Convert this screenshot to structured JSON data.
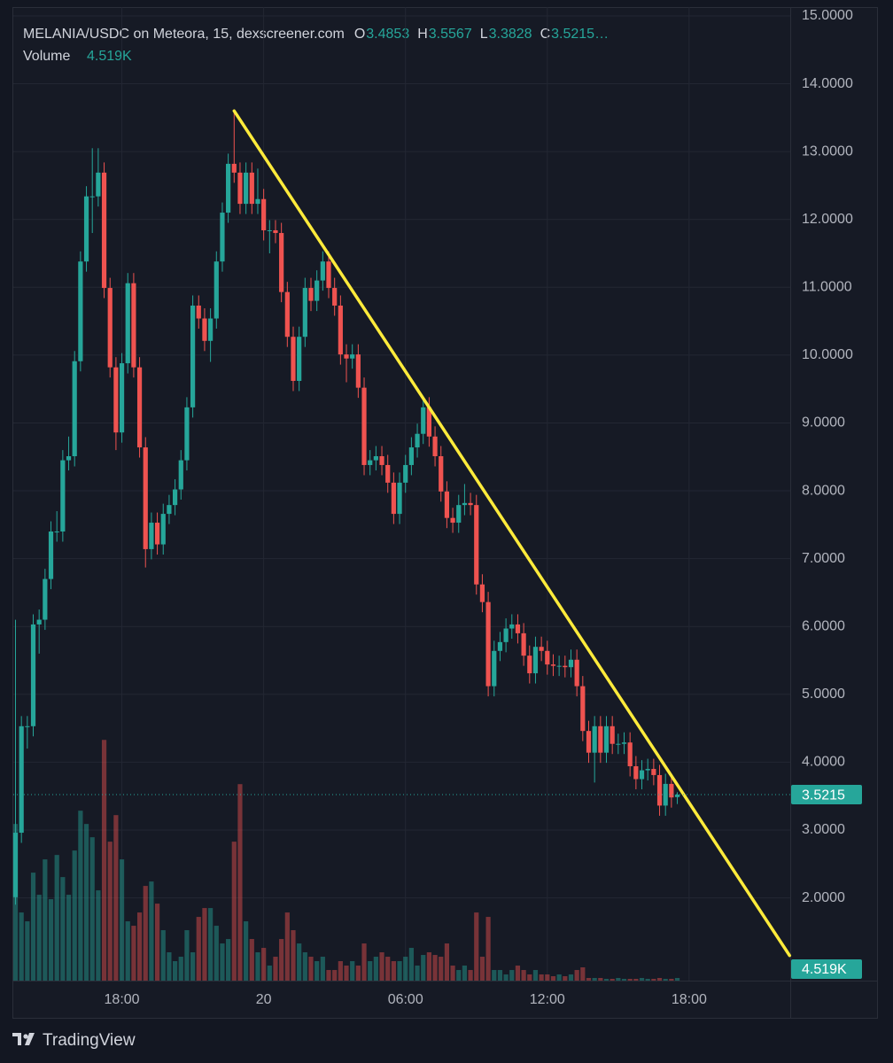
{
  "header": {
    "title": "MELANIA/USDC on Meteora, 15, dexscreener.com",
    "ohlc": [
      {
        "key": "O",
        "text": "3.4853"
      },
      {
        "key": "H",
        "text": "3.5567"
      },
      {
        "key": "L",
        "text": "3.3828"
      },
      {
        "key": "C",
        "text": "3.5215…"
      }
    ],
    "volume_label": "Volume"
  },
  "brand": "TradingView",
  "chart_data": {
    "type": "candlestick",
    "up_color": "#26a69a",
    "down_color": "#ef5350",
    "grid": true,
    "categories": [
      null,
      null,
      null,
      null,
      null,
      null,
      null,
      null,
      null,
      null,
      null,
      null,
      null,
      null,
      null,
      null,
      null,
      null,
      "18:00",
      null,
      null,
      null,
      null,
      null,
      null,
      null,
      null,
      null,
      null,
      null,
      null,
      null,
      null,
      null,
      null,
      null,
      null,
      null,
      null,
      null,
      null,
      null,
      "20",
      null,
      null,
      null,
      null,
      null,
      null,
      null,
      null,
      null,
      null,
      null,
      null,
      null,
      null,
      null,
      null,
      null,
      null,
      null,
      null,
      null,
      null,
      null,
      "06:00",
      null,
      null,
      null,
      null,
      null,
      null,
      null,
      null,
      null,
      null,
      null,
      null,
      null,
      null,
      null,
      null,
      null,
      null,
      null,
      null,
      null,
      null,
      null,
      "12:00",
      null,
      null,
      null,
      null,
      null,
      null,
      null,
      null,
      null,
      null,
      null,
      null,
      null,
      null,
      null,
      null,
      null,
      null,
      null,
      null,
      null,
      null,
      null,
      "18:00",
      null,
      null,
      null,
      null,
      null,
      null,
      null,
      null,
      null,
      null,
      null,
      null,
      null,
      null,
      null,
      null,
      null
    ],
    "open": [
      2.01,
      2.96,
      4.53,
      4.53,
      6.03,
      6.1,
      6.7,
      7.4,
      7.4,
      8.45,
      8.51,
      9.91,
      11.38,
      12.34,
      12.34,
      12.69,
      10.99,
      9.82,
      8.86,
      9.88,
      11.06,
      9.82,
      8.64,
      7.14,
      7.53,
      7.21,
      7.66,
      7.79,
      8.02,
      8.45,
      9.23,
      10.73,
      10.54,
      10.21,
      10.54,
      11.38,
      12.1,
      12.82,
      12.69,
      12.23,
      12.69,
      12.23,
      12.3,
      11.84,
      11.84,
      11.8,
      10.93,
      10.27,
      9.62,
      10.27,
      10.99,
      10.8,
      11.1,
      11.38,
      10.99,
      10.73,
      10.01,
      9.95,
      10.01,
      9.52,
      8.38,
      8.45,
      8.51,
      8.38,
      8.12,
      7.66,
      8.12,
      8.38,
      8.64,
      8.84,
      9.23,
      8.8,
      8.51,
      7.99,
      7.6,
      7.53,
      7.79,
      7.82,
      7.79,
      6.62,
      6.36,
      5.12,
      5.64,
      5.77,
      5.97,
      6.03,
      5.9,
      5.57,
      5.31,
      5.7,
      5.64,
      5.44,
      5.42,
      5.42,
      5.4,
      5.51,
      5.12,
      4.46,
      4.14,
      4.53,
      4.14,
      4.53,
      4.27,
      4.27,
      4.29,
      3.94,
      3.75,
      3.88,
      3.9,
      3.81,
      3.36,
      3.68,
      3.4853,
      null,
      null,
      null,
      null,
      null,
      null,
      null,
      null,
      null,
      null,
      null,
      null,
      null,
      null,
      null,
      null,
      null,
      null,
      null
    ],
    "high": [
      6.1,
      4.68,
      4.68,
      6.18,
      6.25,
      6.85,
      7.55,
      7.7,
      8.6,
      8.8,
      10.06,
      11.53,
      12.49,
      13.05,
      13.05,
      12.84,
      11.14,
      9.97,
      10.03,
      11.21,
      11.21,
      9.97,
      8.79,
      7.68,
      7.68,
      7.81,
      7.94,
      8.17,
      8.6,
      9.38,
      10.88,
      10.88,
      10.69,
      10.69,
      11.53,
      12.25,
      12.97,
      13.6,
      12.84,
      12.84,
      12.84,
      12.75,
      12.45,
      11.99,
      11.99,
      11.95,
      11.08,
      10.42,
      10.42,
      11.14,
      11.14,
      11.25,
      11.53,
      11.53,
      11.14,
      10.88,
      10.16,
      10.16,
      10.16,
      9.67,
      8.6,
      8.66,
      8.66,
      8.53,
      8.27,
      8.27,
      8.53,
      8.79,
      8.99,
      9.38,
      9.38,
      8.95,
      8.66,
      8.14,
      7.75,
      7.94,
      8.1,
      7.97,
      7.94,
      6.77,
      6.51,
      5.79,
      5.92,
      6.12,
      6.18,
      6.18,
      6.05,
      5.72,
      5.85,
      5.85,
      5.79,
      5.59,
      5.57,
      5.57,
      5.66,
      5.66,
      5.27,
      4.61,
      4.68,
      4.68,
      4.68,
      4.68,
      4.42,
      4.44,
      4.44,
      4.09,
      4.03,
      4.05,
      4.05,
      3.96,
      3.83,
      3.83,
      3.5567,
      null,
      null,
      null,
      null,
      null,
      null,
      null,
      null,
      null,
      null,
      null,
      null,
      null,
      null,
      null,
      null,
      null,
      null,
      null
    ],
    "low": [
      1.9,
      2.81,
      4.2,
      4.38,
      5.6,
      5.95,
      6.55,
      7.25,
      7.25,
      8.3,
      8.36,
      9.76,
      11.23,
      11.8,
      12.19,
      10.84,
      9.67,
      8.6,
      8.71,
      9.73,
      9.67,
      8.49,
      6.87,
      6.99,
      7.06,
      7.06,
      7.51,
      7.64,
      7.87,
      8.3,
      9.08,
      10.39,
      10.06,
      9.9,
      10.39,
      11.23,
      11.95,
      12.54,
      12.08,
      12.08,
      12.08,
      12.08,
      11.69,
      11.5,
      11.65,
      10.78,
      10.12,
      9.47,
      9.47,
      10.12,
      10.65,
      10.65,
      10.95,
      10.84,
      10.58,
      9.86,
      9.6,
      9.8,
      9.37,
      8.23,
      8.23,
      8.3,
      8.23,
      7.97,
      7.51,
      7.51,
      7.97,
      8.23,
      8.49,
      8.69,
      8.65,
      8.36,
      7.84,
      7.45,
      7.38,
      7.38,
      7.64,
      7.64,
      6.47,
      6.21,
      4.97,
      4.97,
      5.49,
      5.62,
      5.82,
      5.75,
      5.42,
      5.16,
      5.16,
      5.49,
      5.29,
      5.27,
      5.27,
      5.25,
      5.25,
      4.97,
      4.31,
      3.99,
      3.7,
      3.99,
      3.99,
      4.12,
      4.12,
      4.12,
      3.79,
      3.6,
      3.6,
      3.73,
      3.66,
      3.21,
      3.21,
      3.33,
      3.3828,
      null,
      null,
      null,
      null,
      null,
      null,
      null,
      null,
      null,
      null,
      null,
      null,
      null,
      null,
      null,
      null,
      null,
      null,
      null
    ],
    "close": [
      2.96,
      4.53,
      4.53,
      6.03,
      6.1,
      6.7,
      7.4,
      7.4,
      8.45,
      8.51,
      9.91,
      11.38,
      12.34,
      12.34,
      12.69,
      10.99,
      9.82,
      8.86,
      9.88,
      11.06,
      9.82,
      8.64,
      7.14,
      7.53,
      7.21,
      7.66,
      7.79,
      8.02,
      8.45,
      9.23,
      10.73,
      10.54,
      10.21,
      10.54,
      11.38,
      12.1,
      12.82,
      12.69,
      12.23,
      12.69,
      12.23,
      12.3,
      11.84,
      11.84,
      11.8,
      10.93,
      10.27,
      9.62,
      10.27,
      10.99,
      10.8,
      11.1,
      11.38,
      10.99,
      10.73,
      10.01,
      9.95,
      10.01,
      9.52,
      8.38,
      8.45,
      8.51,
      8.38,
      8.12,
      7.66,
      8.12,
      8.38,
      8.64,
      8.84,
      9.23,
      8.8,
      8.51,
      7.99,
      7.6,
      7.53,
      7.79,
      7.82,
      7.79,
      6.62,
      6.36,
      5.12,
      5.64,
      5.77,
      5.97,
      6.03,
      5.9,
      5.57,
      5.31,
      5.7,
      5.64,
      5.44,
      5.42,
      5.42,
      5.4,
      5.51,
      5.12,
      4.46,
      4.14,
      4.53,
      4.14,
      4.53,
      4.27,
      4.27,
      4.29,
      3.94,
      3.75,
      3.88,
      3.9,
      3.81,
      3.36,
      3.68,
      3.48,
      3.5215,
      null,
      null,
      null,
      null,
      null,
      null,
      null,
      null,
      null,
      null,
      null,
      null,
      null,
      null,
      null,
      null,
      null,
      null,
      null
    ],
    "volume": [
      265500,
      115500,
      100500,
      183000,
      145500,
      205500,
      138000,
      213000,
      175500,
      145500,
      220500,
      288000,
      265500,
      243000,
      153000,
      408000,
      235500,
      280500,
      205500,
      100500,
      93000,
      115500,
      160500,
      168000,
      130500,
      85500,
      48000,
      33000,
      40500,
      85500,
      48000,
      108000,
      123000,
      123000,
      93000,
      63000,
      70500,
      235500,
      333000,
      100500,
      70500,
      48000,
      55500,
      25500,
      40500,
      70500,
      115500,
      85500,
      63000,
      48000,
      40500,
      33000,
      40500,
      18000,
      18000,
      33000,
      25500,
      33000,
      25500,
      63000,
      33000,
      40500,
      48000,
      40500,
      33000,
      33000,
      40500,
      55500,
      25500,
      43500,
      48000,
      43500,
      40500,
      63000,
      25500,
      18000,
      25500,
      18000,
      115500,
      40500,
      108000,
      18000,
      18000,
      10500,
      18000,
      25500,
      18000,
      10500,
      18000,
      10500,
      10500,
      7500,
      10500,
      7500,
      10500,
      18000,
      22500,
      4500,
      4500,
      4500,
      3000,
      3000,
      4500,
      3000,
      3000,
      3000,
      4500,
      3000,
      3000,
      4500,
      3000,
      3000,
      4519,
      null,
      null,
      null,
      null,
      null,
      null,
      null,
      null,
      null,
      null,
      null,
      null,
      null,
      null,
      null,
      null,
      null,
      null,
      null
    ],
    "ylim": [
      0.78,
      15.13
    ],
    "yticks": [
      {
        "value": 2,
        "label": "2.0000"
      },
      {
        "value": 3,
        "label": "3.0000"
      },
      {
        "value": 4,
        "label": "4.0000"
      },
      {
        "value": 5,
        "label": "5.0000"
      },
      {
        "value": 6,
        "label": "6.0000"
      },
      {
        "value": 7,
        "label": "7.0000"
      },
      {
        "value": 8,
        "label": "8.0000"
      },
      {
        "value": 9,
        "label": "9.0000"
      },
      {
        "value": 10,
        "label": "10.0000"
      },
      {
        "value": 11,
        "label": "11.0000"
      },
      {
        "value": 12,
        "label": "12.0000"
      },
      {
        "value": 13,
        "label": "13.0000"
      },
      {
        "value": 14,
        "label": "14.0000"
      },
      {
        "value": 15,
        "label": "15.0000"
      }
    ],
    "vlim": [
      0,
      1650000
    ],
    "last_price": 3.5215,
    "last_volume": {
      "value": 4519,
      "label": "4.519K"
    },
    "trendline": {
      "x": [
        37,
        131
      ],
      "y": [
        13.6,
        1.15
      ],
      "color": "#ffeb3b"
    }
  }
}
